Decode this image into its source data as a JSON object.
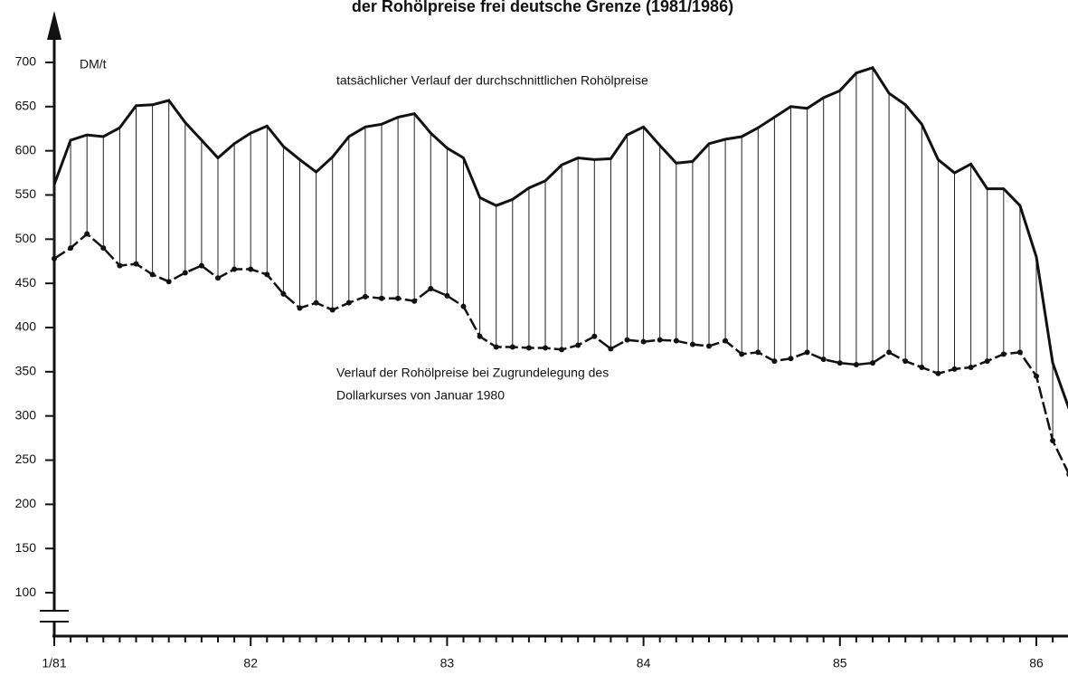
{
  "chart_data": {
    "type": "line",
    "title": "der Rohölpreise frei deutsche Grenze (1981/1986)",
    "y_label": "DM/t",
    "annotations": [
      "tatsächlicher Verlauf der durchschnittlichen Rohölpreise",
      "Verlauf der Rohölpreise bei Zugrundelegung des",
      "Dollarkurses von Januar 1980"
    ],
    "categories": [
      "1/81",
      null,
      null,
      null,
      null,
      null,
      null,
      null,
      null,
      null,
      null,
      null,
      "82",
      null,
      null,
      null,
      null,
      null,
      null,
      null,
      null,
      null,
      null,
      null,
      "83",
      null,
      null,
      null,
      null,
      null,
      null,
      null,
      null,
      null,
      null,
      null,
      "84",
      null,
      null,
      null,
      null,
      null,
      null,
      null,
      null,
      null,
      null,
      null,
      "85",
      null,
      null,
      null,
      null,
      null,
      null,
      null,
      null,
      null,
      null,
      null,
      "86",
      null,
      null
    ],
    "series": [
      {
        "name": "tatsächlicher Verlauf",
        "color": "#111111",
        "values": [
          562,
          612,
          618,
          616,
          626,
          651,
          652,
          657,
          632,
          612,
          592,
          608,
          620,
          628,
          605,
          590,
          576,
          593,
          616,
          627,
          630,
          638,
          642,
          620,
          603,
          592,
          547,
          538,
          545,
          558,
          566,
          584,
          592,
          590,
          591,
          618,
          627,
          606,
          586,
          588,
          608,
          613,
          616,
          626,
          638,
          650,
          648,
          660,
          668,
          688,
          694,
          665,
          652,
          630,
          590,
          575,
          585,
          557,
          557,
          538,
          480,
          360,
          308
        ]
      },
      {
        "name": "Dollarkurs Januar 1980",
        "color": "#111111",
        "values": [
          478,
          490,
          506,
          490,
          470,
          472,
          460,
          452,
          462,
          470,
          456,
          466,
          466,
          460,
          438,
          422,
          428,
          420,
          428,
          435,
          433,
          433,
          430,
          444,
          436,
          424,
          390,
          378,
          378,
          377,
          377,
          375,
          380,
          390,
          376,
          386,
          384,
          386,
          385,
          381,
          379,
          385,
          370,
          372,
          362,
          365,
          372,
          364,
          360,
          358,
          360,
          372,
          362,
          355,
          348,
          353,
          355,
          362,
          370,
          372,
          345,
          272,
          234
        ]
      }
    ],
    "ylim": [
      54,
      745
    ],
    "yticks": [
      100,
      150,
      200,
      250,
      300,
      350,
      400,
      450,
      500,
      550,
      600,
      650,
      700
    ]
  }
}
